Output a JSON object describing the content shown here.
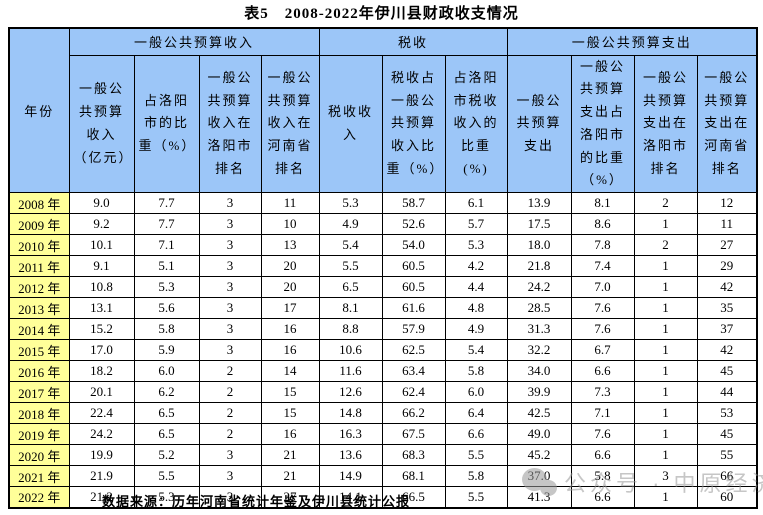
{
  "page": {
    "title": "表5　2008-2022年伊川县财政收支情况",
    "source_note": "数据来源：历年河南省统计年鉴及伊川县统计公报"
  },
  "watermark": {
    "icon": "wechat-bubbles-logo",
    "text": "公众号 · 中原经济"
  },
  "colors": {
    "header_bg": "#9CC6F8",
    "year_bg": "#FFFF99",
    "border": "#000000",
    "watermark": "#999999"
  },
  "table": {
    "year_header": "年份",
    "groups": [
      {
        "label": "一般公共预算收入",
        "colspan": 4
      },
      {
        "label": "税收",
        "colspan": 3
      },
      {
        "label": "一般公共预算支出",
        "colspan": 4
      }
    ],
    "sub_headers": [
      "一般公共预算收入（亿元）",
      "占洛阳市的比重（%）",
      "一般公共预算收入在洛阳市排名",
      "一般公共预算收入在河南省排名",
      "税收收入",
      "税收占一般公共预算收入比重（%）",
      "占洛阳市税收收入的比重(%)",
      "一般公共预算支出",
      "一般公共预算支出占洛阳市的比重（%）",
      "一般公共预算支出在洛阳市排名",
      "一般公共预算支出在河南省排名"
    ],
    "rows": [
      {
        "year": "2008 年",
        "values": [
          "9.0",
          "7.7",
          "3",
          "11",
          "5.3",
          "58.7",
          "6.1",
          "13.9",
          "8.1",
          "2",
          "12"
        ]
      },
      {
        "year": "2009 年",
        "values": [
          "9.2",
          "7.7",
          "3",
          "10",
          "4.9",
          "52.6",
          "5.7",
          "17.5",
          "8.6",
          "1",
          "11"
        ]
      },
      {
        "year": "2010 年",
        "values": [
          "10.1",
          "7.1",
          "3",
          "13",
          "5.4",
          "54.0",
          "5.3",
          "18.0",
          "7.8",
          "2",
          "27"
        ]
      },
      {
        "year": "2011 年",
        "values": [
          "9.1",
          "5.1",
          "3",
          "20",
          "5.5",
          "60.5",
          "4.2",
          "21.8",
          "7.4",
          "1",
          "29"
        ]
      },
      {
        "year": "2012 年",
        "values": [
          "10.8",
          "5.3",
          "3",
          "20",
          "6.5",
          "60.5",
          "4.4",
          "24.2",
          "7.0",
          "1",
          "42"
        ]
      },
      {
        "year": "2013 年",
        "values": [
          "13.1",
          "5.6",
          "3",
          "17",
          "8.1",
          "61.6",
          "4.8",
          "28.5",
          "7.6",
          "1",
          "35"
        ]
      },
      {
        "year": "2014 年",
        "values": [
          "15.2",
          "5.8",
          "3",
          "16",
          "8.8",
          "57.9",
          "4.9",
          "31.3",
          "7.6",
          "1",
          "37"
        ]
      },
      {
        "year": "2015 年",
        "values": [
          "17.0",
          "5.9",
          "3",
          "16",
          "10.6",
          "62.5",
          "5.4",
          "32.2",
          "6.7",
          "1",
          "42"
        ]
      },
      {
        "year": "2016 年",
        "values": [
          "18.2",
          "6.0",
          "2",
          "14",
          "11.6",
          "63.4",
          "5.8",
          "34.0",
          "6.6",
          "1",
          "45"
        ]
      },
      {
        "year": "2017 年",
        "values": [
          "20.1",
          "6.2",
          "2",
          "15",
          "12.6",
          "62.4",
          "6.0",
          "39.9",
          "7.3",
          "1",
          "44"
        ]
      },
      {
        "year": "2018 年",
        "values": [
          "22.4",
          "6.5",
          "2",
          "15",
          "14.8",
          "66.2",
          "6.4",
          "42.5",
          "7.1",
          "1",
          "53"
        ]
      },
      {
        "year": "2019 年",
        "values": [
          "24.2",
          "6.5",
          "2",
          "16",
          "16.3",
          "67.5",
          "6.6",
          "49.0",
          "7.6",
          "1",
          "45"
        ]
      },
      {
        "year": "2020 年",
        "values": [
          "19.9",
          "5.2",
          "3",
          "21",
          "13.6",
          "68.3",
          "5.5",
          "45.2",
          "6.6",
          "1",
          "55"
        ]
      },
      {
        "year": "2021 年",
        "values": [
          "21.9",
          "5.5",
          "3",
          "21",
          "14.9",
          "68.1",
          "5.8",
          "37.0",
          "5.8",
          "3",
          "66"
        ]
      },
      {
        "year": "2022 年",
        "values": [
          "21.2",
          "5.3",
          "3",
          "27",
          "14.1",
          "66.5",
          "5.5",
          "41.3",
          "6.6",
          "1",
          "60"
        ]
      }
    ]
  }
}
